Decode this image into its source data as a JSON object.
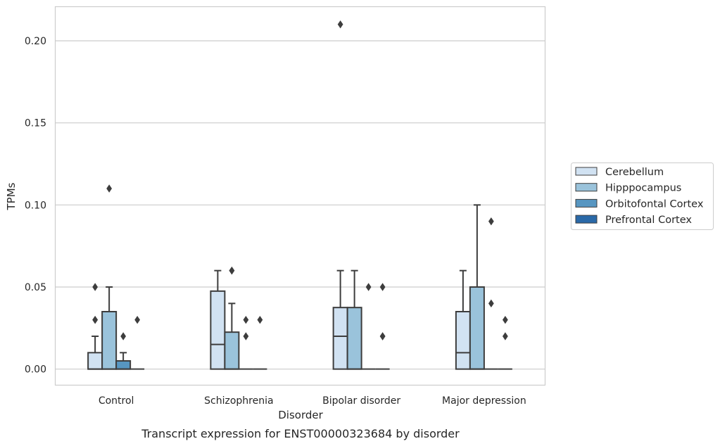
{
  "chart_data": {
    "type": "boxplot",
    "caption": "Transcript expression for ENST00000323684 by disorder",
    "xlabel": "Disorder",
    "ylabel": "TPMs",
    "ylim": [
      -0.01,
      0.221
    ],
    "yticks": [
      0.0,
      0.05,
      0.1,
      0.15,
      0.2
    ],
    "ytick_labels": [
      "0.00",
      "0.05",
      "0.10",
      "0.15",
      "0.20"
    ],
    "grid": "horizontal",
    "legend_position": "right",
    "categories": [
      "Control",
      "Schizophrenia",
      "Bipolar disorder",
      "Major depression"
    ],
    "series": [
      {
        "name": "Cerebellum",
        "color": "#d1e2f2",
        "boxes": [
          {
            "q1": 0.0,
            "median": 0.0,
            "q3": 0.01,
            "whisker_low": 0.0,
            "whisker_high": 0.02,
            "outliers": [
              0.03,
              0.03,
              0.05
            ]
          },
          {
            "q1": 0.0,
            "median": 0.015,
            "q3": 0.0475,
            "whisker_low": 0.0,
            "whisker_high": 0.06,
            "outliers": []
          },
          {
            "q1": 0.0,
            "median": 0.02,
            "q3": 0.0375,
            "whisker_low": 0.0,
            "whisker_high": 0.06,
            "outliers": [
              0.21
            ]
          },
          {
            "q1": 0.0,
            "median": 0.01,
            "q3": 0.035,
            "whisker_low": 0.0,
            "whisker_high": 0.06,
            "outliers": []
          }
        ]
      },
      {
        "name": "Hipppocampus",
        "color": "#9ac3db",
        "boxes": [
          {
            "q1": 0.0,
            "median": 0.0,
            "q3": 0.035,
            "whisker_low": 0.0,
            "whisker_high": 0.05,
            "outliers": [
              0.11
            ]
          },
          {
            "q1": 0.0,
            "median": 0.0,
            "q3": 0.0225,
            "whisker_low": 0.0,
            "whisker_high": 0.04,
            "outliers": [
              0.06,
              0.06
            ]
          },
          {
            "q1": 0.0,
            "median": 0.0,
            "q3": 0.0375,
            "whisker_low": 0.0,
            "whisker_high": 0.06,
            "outliers": []
          },
          {
            "q1": 0.0,
            "median": 0.0,
            "q3": 0.05,
            "whisker_low": 0.0,
            "whisker_high": 0.1,
            "outliers": []
          }
        ]
      },
      {
        "name": "Orbitofontal Cortex",
        "color": "#5796c1",
        "boxes": [
          {
            "q1": 0.0,
            "median": 0.0,
            "q3": 0.005,
            "whisker_low": 0.0,
            "whisker_high": 0.01,
            "outliers": [
              0.02
            ]
          },
          {
            "q1": 0.0,
            "median": 0.0,
            "q3": 0.0,
            "whisker_low": 0.0,
            "whisker_high": 0.0,
            "outliers": [
              0.02,
              0.03
            ]
          },
          {
            "q1": 0.0,
            "median": 0.0,
            "q3": 0.0,
            "whisker_low": 0.0,
            "whisker_high": 0.0,
            "outliers": [
              0.05
            ]
          },
          {
            "q1": 0.0,
            "median": 0.0,
            "q3": 0.0,
            "whisker_low": 0.0,
            "whisker_high": 0.0,
            "outliers": [
              0.04,
              0.09
            ]
          }
        ]
      },
      {
        "name": "Prefrontal Cortex",
        "color": "#2a69a8",
        "boxes": [
          {
            "q1": 0.0,
            "median": 0.0,
            "q3": 0.0,
            "whisker_low": 0.0,
            "whisker_high": 0.0,
            "outliers": [
              0.03
            ]
          },
          {
            "q1": 0.0,
            "median": 0.0,
            "q3": 0.0,
            "whisker_low": 0.0,
            "whisker_high": 0.0,
            "outliers": [
              0.03
            ]
          },
          {
            "q1": 0.0,
            "median": 0.0,
            "q3": 0.0,
            "whisker_low": 0.0,
            "whisker_high": 0.0,
            "outliers": [
              0.02,
              0.02,
              0.05
            ]
          },
          {
            "q1": 0.0,
            "median": 0.0,
            "q3": 0.0,
            "whisker_low": 0.0,
            "whisker_high": 0.0,
            "outliers": [
              0.02,
              0.03
            ]
          }
        ]
      }
    ]
  }
}
